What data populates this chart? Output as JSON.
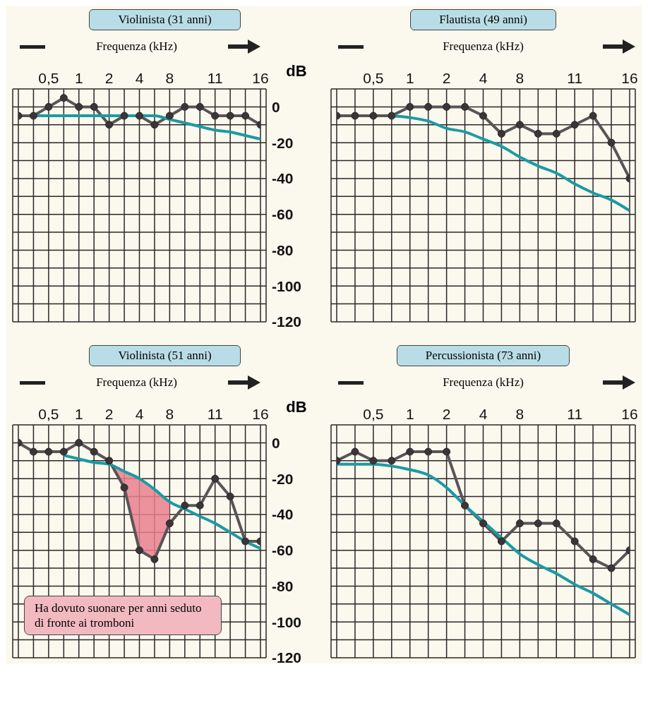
{
  "chart_data": [
    {
      "type": "line",
      "title": "Violinista (31 anni)",
      "xlabel": "Frequenza (kHz)",
      "ylabel": "dB",
      "categories": [
        null,
        null,
        "0,5",
        null,
        "1",
        null,
        "2",
        null,
        "4",
        null,
        "8",
        null,
        null,
        "11",
        null,
        null,
        "16"
      ],
      "series": [
        {
          "color": "#5a5457",
          "values": [
            -5,
            -5,
            0,
            5,
            0,
            0,
            -10,
            -5,
            -5,
            -10,
            -5,
            0,
            0,
            -5,
            -5,
            -5,
            -10
          ]
        },
        {
          "color": "#1a9ba3",
          "marker": "none",
          "values": [
            null,
            -5,
            -5,
            -5,
            -5,
            -5,
            -5,
            -5,
            -5,
            -5,
            -7,
            -9,
            -11,
            -13,
            -14,
            -16,
            -18
          ]
        }
      ],
      "ylim": [
        -120,
        10
      ],
      "yticks": [
        {
          "value": 10,
          "label": null
        },
        0,
        {
          "value": -10,
          "label": null
        },
        -20,
        {
          "value": -30,
          "label": null
        },
        -40,
        {
          "value": -50,
          "label": null
        },
        -60,
        {
          "value": -70,
          "label": null
        },
        -80,
        {
          "value": -90,
          "label": null
        },
        -100,
        {
          "value": -110,
          "label": null
        },
        -120
      ],
      "grid": true,
      "marker": "circle"
    },
    {
      "type": "line",
      "title": "Flautista (49 anni)",
      "xlabel": "Frequenza (kHz)",
      "categories": [
        null,
        null,
        "0,5",
        null,
        "1",
        null,
        "2",
        null,
        "4",
        null,
        "8",
        null,
        null,
        "11",
        null,
        null,
        "16"
      ],
      "series": [
        {
          "color": "#5a5457",
          "values": [
            -5,
            -5,
            -5,
            -5,
            0,
            0,
            0,
            0,
            -5,
            -15,
            -10,
            -15,
            -15,
            -10,
            -5,
            -20,
            -40
          ]
        },
        {
          "color": "#1a9ba3",
          "marker": "none",
          "values": [
            null,
            null,
            null,
            -5,
            -6,
            -8,
            -12,
            -14,
            -18,
            -22,
            -28,
            -33,
            -37,
            -43,
            -48,
            -52,
            -58
          ]
        }
      ],
      "ylim": [
        -120,
        10
      ],
      "yticks": [
        {
          "value": 10,
          "label": null
        },
        0,
        {
          "value": -10,
          "label": null
        },
        -20,
        {
          "value": -30,
          "label": null
        },
        -40,
        {
          "value": -50,
          "label": null
        },
        -60,
        {
          "value": -70,
          "label": null
        },
        -80,
        {
          "value": -90,
          "label": null
        },
        -100,
        {
          "value": -110,
          "label": null
        },
        -120
      ],
      "grid": true,
      "marker": "circle",
      "tick_labels": "x"
    },
    {
      "type": "line",
      "title": "Violinista (51 anni)",
      "xlabel": "Frequenza (kHz)",
      "ylabel": "dB",
      "categories": [
        null,
        null,
        "0,5",
        null,
        "1",
        null,
        "2",
        null,
        "4",
        null,
        "8",
        null,
        null,
        "11",
        null,
        null,
        "16"
      ],
      "series": [
        {
          "color": "#5a5457",
          "values": [
            0,
            -5,
            -5,
            -5,
            0,
            -5,
            -10,
            -25,
            -60,
            -65,
            -45,
            -35,
            -35,
            -20,
            -30,
            -55,
            -55
          ],
          "lower": [
            null,
            null,
            null,
            null,
            null,
            null,
            -10,
            -25,
            -60,
            -65,
            -45,
            null,
            null,
            null,
            null,
            null,
            null
          ],
          "upper": [
            null,
            null,
            null,
            null,
            null,
            null,
            -12,
            -16,
            -20,
            -26,
            -33,
            null,
            null,
            null,
            null,
            null,
            null
          ]
        },
        {
          "color": "#1a9ba3",
          "marker": "none",
          "values": [
            null,
            null,
            null,
            -7,
            -9,
            -11,
            -12,
            -16,
            -20,
            -26,
            -33,
            -37,
            -41,
            -45,
            -50,
            -55,
            -59
          ]
        }
      ],
      "ylim": [
        -120,
        10
      ],
      "yticks": [
        {
          "value": 10,
          "label": null
        },
        0,
        {
          "value": -10,
          "label": null
        },
        -20,
        {
          "value": -30,
          "label": null
        },
        -40,
        {
          "value": -50,
          "label": null
        },
        -60,
        {
          "value": -70,
          "label": null
        },
        -80,
        {
          "value": -90,
          "label": null
        },
        -100,
        {
          "value": -110,
          "label": null
        },
        -120
      ],
      "grid": true,
      "marker": "circle",
      "annotations": [
        "Ha dovuto suonare per anni seduto di fronte ai tromboni"
      ]
    },
    {
      "type": "line",
      "title": "Percussionista (73 anni)",
      "xlabel": "Frequenza (kHz)",
      "categories": [
        null,
        null,
        "0,5",
        null,
        "1",
        null,
        "2",
        null,
        "4",
        null,
        "8",
        null,
        null,
        "11",
        null,
        null,
        "16"
      ],
      "series": [
        {
          "color": "#5a5457",
          "values": [
            -10,
            -5,
            -10,
            -10,
            -5,
            -5,
            -5,
            -35,
            -45,
            -55,
            -45,
            -45,
            -45,
            -55,
            -65,
            -70,
            -60
          ]
        },
        {
          "color": "#1a9ba3",
          "marker": "none",
          "values": [
            -12,
            -12,
            -12,
            -13,
            -15,
            -18,
            -25,
            -35,
            -44,
            -53,
            -62,
            -68,
            -73,
            -79,
            -84,
            -90,
            -96
          ]
        }
      ],
      "ylim": [
        -120,
        10
      ],
      "yticks": [
        {
          "value": 10,
          "label": null
        },
        0,
        {
          "value": -10,
          "label": null
        },
        -20,
        {
          "value": -30,
          "label": null
        },
        -40,
        {
          "value": -50,
          "label": null
        },
        -60,
        {
          "value": -70,
          "label": null
        },
        -80,
        {
          "value": -90,
          "label": null
        },
        -100,
        {
          "value": -110,
          "label": null
        },
        -120
      ],
      "grid": true,
      "marker": "circle",
      "tick_labels": "x"
    }
  ]
}
